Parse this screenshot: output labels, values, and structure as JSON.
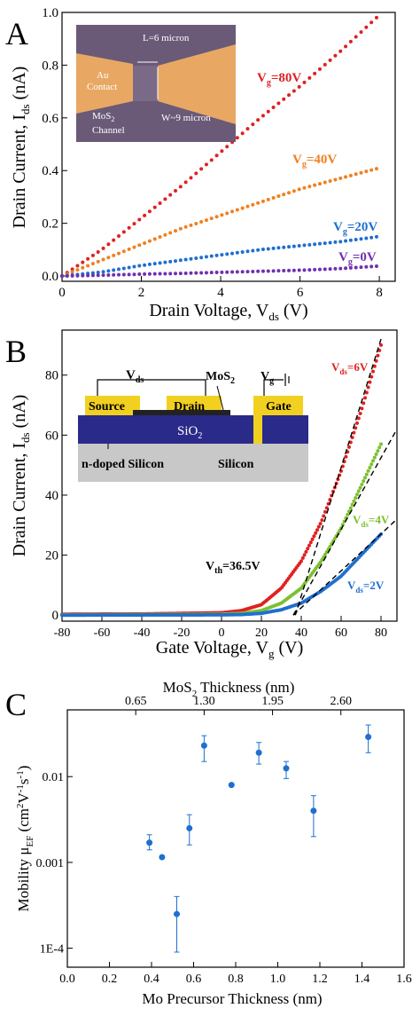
{
  "panels": [
    {
      "id": "A",
      "panel_label": "A",
      "xlabel": "Drain Voltage, V",
      "xlabel_sub": "ds",
      "xlabel_tail": " (V)",
      "ylabel": "Drain Current, I",
      "ylabel_sub": "ds",
      "ylabel_tail": " (nA)",
      "xticks": [
        "0",
        "2",
        "4",
        "6",
        "8"
      ],
      "yticks": [
        "0.0",
        "0.2",
        "0.4",
        "0.6",
        "0.8",
        "1.0"
      ],
      "inset": {
        "l_label": "L=6 micron",
        "au_label_1": "Au",
        "au_label_2": "Contact",
        "mos2_label_1": "MoS",
        "mos2_sub": "2",
        "mos2_label_2": "Channel",
        "w_label": "W~9 micron"
      },
      "annotations": [
        {
          "main": "V",
          "sub": "g",
          "tail": "=80V",
          "color": "#e02020"
        },
        {
          "main": "V",
          "sub": "g",
          "tail": "=40V",
          "color": "#f08020"
        },
        {
          "main": "V",
          "sub": "g",
          "tail": "=20V",
          "color": "#1f6fcf"
        },
        {
          "main": "V",
          "sub": "g",
          "tail": "=0V",
          "color": "#7030b0"
        }
      ]
    },
    {
      "id": "B",
      "panel_label": "B",
      "xlabel": "Gate Voltage, V",
      "xlabel_sub": "g",
      "xlabel_tail": " (V)",
      "ylabel": "Drain Current, I",
      "ylabel_sub": "ds",
      "ylabel_tail": " (nA)",
      "xticks": [
        "-80",
        "-60",
        "-40",
        "-20",
        "0",
        "20",
        "40",
        "60",
        "80"
      ],
      "yticks": [
        "0",
        "20",
        "40",
        "60",
        "80"
      ],
      "vth": {
        "main": "V",
        "sub": "th",
        "tail": "=36.5V"
      },
      "inset": {
        "vds": "V",
        "vds_sub": "ds",
        "mos2": "MoS",
        "mos2_sub": "2",
        "vg": "V",
        "vg_sub": "g",
        "source": "Source",
        "drain": "Drain",
        "gate": "Gate",
        "sio2": "SiO",
        "sio2_sub": "2",
        "ndoped": "n-doped Silicon",
        "silicon": "Silicon"
      },
      "annotations": [
        {
          "main": "V",
          "sub": "ds",
          "tail": "=6V",
          "color": "#e02020"
        },
        {
          "main": "V",
          "sub": "ds",
          "tail": "=4V",
          "color": "#7cc030"
        },
        {
          "main": "V",
          "sub": "ds",
          "tail": "=2V",
          "color": "#1f6fcf"
        }
      ]
    },
    {
      "id": "C",
      "panel_label": "C",
      "xlabel": "Mo Precursor Thickness (nm)",
      "top_xlabel": "MoS",
      "top_xlabel_sub": "2",
      "top_xlabel_tail": " Thickness (nm)",
      "ylabel": "Mobility μ",
      "ylabel_sub": "EF",
      "ylabel_tail": " (cm",
      "ylabel_unit_tail": "V",
      "ylabel_unit_tail2": "s",
      "ylabel_close": ")",
      "xticks": [
        "0.0",
        "0.2",
        "0.4",
        "0.6",
        "0.8",
        "1.0",
        "1.2",
        "1.4",
        "1.6"
      ],
      "top_xticks": [
        "0.65",
        "1.30",
        "1.95",
        "2.60"
      ],
      "yticks": [
        "1E-4",
        "0.001",
        "0.01"
      ]
    }
  ],
  "chart_data": [
    {
      "type": "line",
      "title": "",
      "xlabel": "Drain Voltage, Vds (V)",
      "ylabel": "Drain Current, Ids (nA)",
      "xlim": [
        0,
        8.4
      ],
      "ylim": [
        -0.02,
        1.0
      ],
      "series": [
        {
          "name": "Vg=80V",
          "color": "#e02020",
          "x": [
            0,
            1,
            2,
            3,
            4,
            5,
            6,
            7,
            8
          ],
          "y": [
            0.0,
            0.1,
            0.22,
            0.34,
            0.47,
            0.6,
            0.72,
            0.85,
            0.99
          ]
        },
        {
          "name": "Vg=40V",
          "color": "#f08020",
          "x": [
            0,
            1,
            2,
            3,
            4,
            5,
            6,
            7,
            8
          ],
          "y": [
            0.0,
            0.06,
            0.12,
            0.18,
            0.23,
            0.28,
            0.33,
            0.37,
            0.41
          ]
        },
        {
          "name": "Vg=20V",
          "color": "#1f6fcf",
          "x": [
            0,
            1,
            2,
            3,
            4,
            5,
            6,
            7,
            8
          ],
          "y": [
            0.0,
            0.015,
            0.04,
            0.06,
            0.08,
            0.1,
            0.115,
            0.13,
            0.15
          ]
        },
        {
          "name": "Vg=0V",
          "color": "#7030b0",
          "x": [
            0,
            1,
            2,
            3,
            4,
            5,
            6,
            7,
            8
          ],
          "y": [
            0.0,
            0.003,
            0.007,
            0.01,
            0.014,
            0.018,
            0.022,
            0.028,
            0.038
          ]
        }
      ]
    },
    {
      "type": "line",
      "title": "",
      "xlabel": "Gate Voltage, Vg (V)",
      "ylabel": "Drain Current, Ids (nA)",
      "xlim": [
        -80,
        88
      ],
      "ylim": [
        -2,
        95
      ],
      "series": [
        {
          "name": "Vds=6V",
          "color": "#e02020",
          "x": [
            -80,
            -40,
            0,
            10,
            20,
            30,
            40,
            50,
            60,
            70,
            80
          ],
          "y": [
            0.3,
            0.4,
            0.8,
            1.5,
            3.5,
            9,
            18,
            31,
            48,
            68,
            90
          ]
        },
        {
          "name": "Vds=4V",
          "color": "#7cc030",
          "x": [
            -80,
            0,
            10,
            20,
            30,
            40,
            50,
            60,
            70,
            80
          ],
          "y": [
            0.1,
            0.3,
            0.6,
            1.5,
            4,
            9,
            18,
            29,
            43,
            57
          ]
        },
        {
          "name": "Vds=2V",
          "color": "#1f6fcf",
          "x": [
            -80,
            0,
            10,
            20,
            30,
            40,
            50,
            60,
            70,
            80
          ],
          "y": [
            0.0,
            0.1,
            0.2,
            0.6,
            1.8,
            4,
            8,
            13,
            20,
            27
          ]
        }
      ],
      "fit_lines": [
        {
          "x": [
            37,
            80
          ],
          "y": [
            0,
            92
          ]
        },
        {
          "x": [
            36,
            88
          ],
          "y": [
            0,
            62
          ]
        },
        {
          "x": [
            36,
            88
          ],
          "y": [
            0,
            32
          ]
        }
      ]
    },
    {
      "type": "scatter",
      "title": "",
      "xlabel": "Mo Precursor Thickness (nm)",
      "ylabel": "Mobility μEF (cm2V-1s-1)",
      "y_scale": "log",
      "xlim": [
        0.0,
        1.6
      ],
      "ylim": [
        6e-05,
        0.06
      ],
      "points": [
        {
          "x": 0.39,
          "y": 0.0017,
          "err_lo": 0.0014,
          "err_hi": 0.0021
        },
        {
          "x": 0.45,
          "y": 0.00115
        },
        {
          "x": 0.52,
          "y": 0.00025,
          "err_lo": 9e-05,
          "err_hi": 0.0004
        },
        {
          "x": 0.58,
          "y": 0.0025,
          "err_lo": 0.0016,
          "err_hi": 0.0036
        },
        {
          "x": 0.65,
          "y": 0.023,
          "err_lo": 0.015,
          "err_hi": 0.03
        },
        {
          "x": 0.78,
          "y": 0.008
        },
        {
          "x": 0.91,
          "y": 0.019,
          "err_lo": 0.014,
          "err_hi": 0.025
        },
        {
          "x": 1.04,
          "y": 0.0125,
          "err_lo": 0.0095,
          "err_hi": 0.015
        },
        {
          "x": 1.17,
          "y": 0.004,
          "err_lo": 0.002,
          "err_hi": 0.006
        },
        {
          "x": 1.43,
          "y": 0.029,
          "err_lo": 0.019,
          "err_hi": 0.04
        }
      ],
      "color": "#1f6fcf"
    }
  ]
}
